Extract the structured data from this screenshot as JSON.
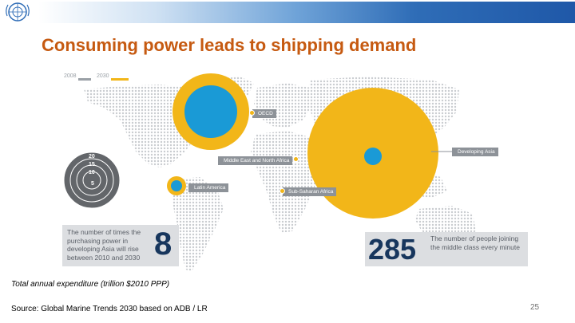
{
  "title": "Consuming power leads to shipping demand",
  "legend": {
    "items": [
      {
        "label": "2008",
        "color": "#9aa0a6"
      },
      {
        "label": "2030",
        "color": "#f2b619"
      }
    ]
  },
  "regions": [
    {
      "label": "OECD"
    },
    {
      "label": "Middle East and North Africa"
    },
    {
      "label": "Developing Asia"
    },
    {
      "label": "Latin America"
    },
    {
      "label": "Sub-Saharan Africa"
    }
  ],
  "rings": [
    "20",
    "15",
    "10",
    "5"
  ],
  "info_left": {
    "text": "The number of times the purchasing power in developing Asia will rise between 2010 and 2030",
    "number": "8"
  },
  "info_right": {
    "number": "285",
    "text": "The number of people joining the middle class every minute"
  },
  "caption": "Total annual expenditure (trillion $2010 PPP)",
  "source": "Source: Global Marine Trends 2030 based on ADB / LR",
  "page_number": "25",
  "colors": {
    "accent": "#c65a11",
    "yellow": "#f2b619",
    "blue": "#1a9ad6",
    "navy": "#17365d",
    "dots": "#c9ccd0"
  }
}
